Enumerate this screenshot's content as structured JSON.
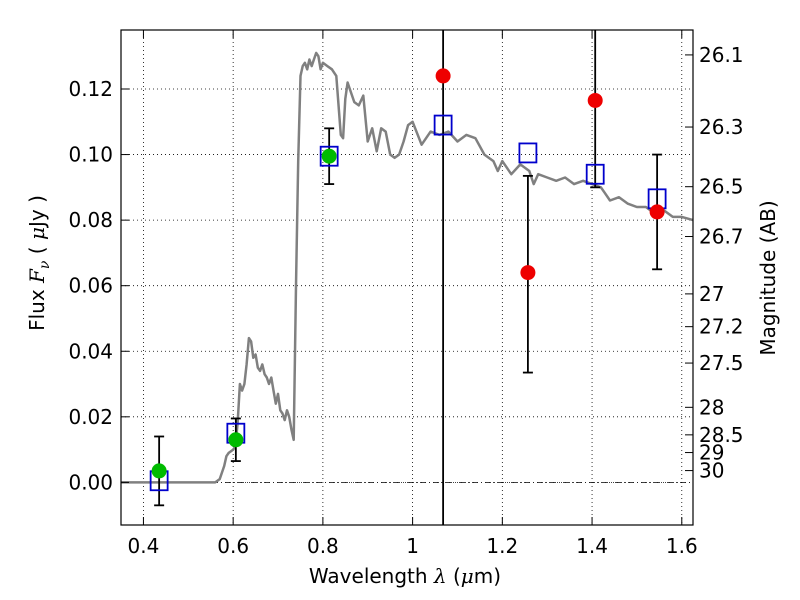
{
  "chart_data": {
    "type": "scatter",
    "xlabel": {
      "prefix": "Wavelength  ",
      "symbol": "λ",
      "suffix": " (",
      "unit_symbol": "μ",
      "unit_rest": "m)"
    },
    "ylabel": {
      "prefix": "Flux  ",
      "symbol": "F",
      "subscript": "ν",
      "suffix": "  (  ",
      "unit_symbol": "μ",
      "unit_rest": "Jy  )"
    },
    "y2label": "Magnitude (AB)",
    "xlim": [
      0.35,
      1.625
    ],
    "ylim": [
      -0.013,
      0.138
    ],
    "grid": true,
    "x_ticks": [
      {
        "value": 0.4,
        "label": "0.4"
      },
      {
        "value": 0.6,
        "label": "0.6"
      },
      {
        "value": 0.8,
        "label": "0.8"
      },
      {
        "value": 1.0,
        "label": "1"
      },
      {
        "value": 1.2,
        "label": "1.2"
      },
      {
        "value": 1.4,
        "label": "1.4"
      },
      {
        "value": 1.6,
        "label": "1.6"
      }
    ],
    "y_ticks": [
      {
        "value": 0.0,
        "label": "0.00"
      },
      {
        "value": 0.02,
        "label": "0.02"
      },
      {
        "value": 0.04,
        "label": "0.04"
      },
      {
        "value": 0.06,
        "label": "0.06"
      },
      {
        "value": 0.08,
        "label": "0.08"
      },
      {
        "value": 0.1,
        "label": "0.10"
      },
      {
        "value": 0.12,
        "label": "0.12"
      }
    ],
    "y2_ticks": [
      {
        "flux": 0.1304,
        "label": "26.1"
      },
      {
        "flux": 0.1084,
        "label": "26.3"
      },
      {
        "flux": 0.0902,
        "label": "26.5"
      },
      {
        "flux": 0.075,
        "label": "26.7"
      },
      {
        "flux": 0.0575,
        "label": "27"
      },
      {
        "flux": 0.0475,
        "label": "27.2"
      },
      {
        "flux": 0.0364,
        "label": "27.5"
      },
      {
        "flux": 0.0229,
        "label": "28"
      },
      {
        "flux": 0.0145,
        "label": "28.5"
      },
      {
        "flux": 0.0091,
        "label": "29"
      },
      {
        "flux": 0.0036,
        "label": "30"
      }
    ],
    "series": [
      {
        "name": "model-spectrum",
        "type": "line",
        "color": "#808080",
        "x": [
          0.35,
          0.5,
          0.55,
          0.56,
          0.57,
          0.58,
          0.585,
          0.59,
          0.6,
          0.605,
          0.61,
          0.615,
          0.62,
          0.625,
          0.63,
          0.635,
          0.64,
          0.645,
          0.65,
          0.655,
          0.66,
          0.665,
          0.67,
          0.675,
          0.68,
          0.685,
          0.69,
          0.695,
          0.7,
          0.705,
          0.71,
          0.715,
          0.72,
          0.725,
          0.73,
          0.735,
          0.74,
          0.745,
          0.75,
          0.755,
          0.76,
          0.765,
          0.77,
          0.775,
          0.78,
          0.785,
          0.79,
          0.795,
          0.8,
          0.81,
          0.82,
          0.83,
          0.84,
          0.845,
          0.85,
          0.855,
          0.86,
          0.87,
          0.88,
          0.89,
          0.9,
          0.91,
          0.92,
          0.93,
          0.94,
          0.95,
          0.96,
          0.97,
          0.98,
          0.99,
          1.0,
          1.02,
          1.04,
          1.06,
          1.08,
          1.1,
          1.12,
          1.14,
          1.16,
          1.18,
          1.19,
          1.2,
          1.22,
          1.24,
          1.26,
          1.27,
          1.28,
          1.3,
          1.32,
          1.34,
          1.36,
          1.38,
          1.4,
          1.42,
          1.43,
          1.44,
          1.46,
          1.48,
          1.5,
          1.52,
          1.54,
          1.56,
          1.58,
          1.6,
          1.625
        ],
        "y": [
          0.0,
          0.0,
          0.0,
          0.0,
          0.001,
          0.005,
          0.008,
          0.009,
          0.01,
          0.011,
          0.018,
          0.03,
          0.028,
          0.03,
          0.036,
          0.044,
          0.043,
          0.038,
          0.039,
          0.035,
          0.034,
          0.036,
          0.033,
          0.032,
          0.03,
          0.032,
          0.028,
          0.024,
          0.027,
          0.022,
          0.021,
          0.019,
          0.022,
          0.02,
          0.016,
          0.013,
          0.06,
          0.098,
          0.124,
          0.127,
          0.128,
          0.126,
          0.129,
          0.127,
          0.129,
          0.131,
          0.13,
          0.126,
          0.128,
          0.127,
          0.126,
          0.124,
          0.106,
          0.105,
          0.117,
          0.122,
          0.12,
          0.116,
          0.115,
          0.118,
          0.104,
          0.108,
          0.101,
          0.108,
          0.107,
          0.1,
          0.099,
          0.1,
          0.104,
          0.109,
          0.11,
          0.103,
          0.107,
          0.106,
          0.107,
          0.104,
          0.106,
          0.105,
          0.1,
          0.098,
          0.095,
          0.098,
          0.094,
          0.097,
          0.095,
          0.091,
          0.094,
          0.093,
          0.092,
          0.093,
          0.091,
          0.092,
          0.091,
          0.09,
          0.088,
          0.086,
          0.087,
          0.085,
          0.084,
          0.084,
          0.082,
          0.083,
          0.081,
          0.081,
          0.08
        ]
      },
      {
        "name": "model-photometry",
        "type": "open-square",
        "color": "#0000cc",
        "x": [
          0.435,
          0.606,
          0.814,
          1.068,
          1.257,
          1.407,
          1.545
        ],
        "y": [
          0.0005,
          0.015,
          0.0995,
          0.109,
          0.1005,
          0.094,
          0.0865
        ]
      },
      {
        "name": "detections",
        "type": "point",
        "color": "#00bb00",
        "x": [
          0.435,
          0.606,
          0.814
        ],
        "y": [
          0.0035,
          0.013,
          0.0995
        ],
        "yerr_low": [
          -0.007,
          0.0065,
          0.091
        ],
        "yerr_high": [
          0.014,
          0.0195,
          0.108
        ]
      },
      {
        "name": "non-detections",
        "type": "point",
        "color": "#ee0000",
        "x": [
          1.068,
          1.257,
          1.407,
          1.545
        ],
        "y": [
          0.124,
          0.064,
          0.1165,
          0.0825
        ],
        "yerr_low": [
          null,
          0.0335,
          0.09,
          0.065
        ],
        "yerr_high": [
          0.138,
          0.0935,
          0.138,
          0.1
        ]
      }
    ]
  }
}
